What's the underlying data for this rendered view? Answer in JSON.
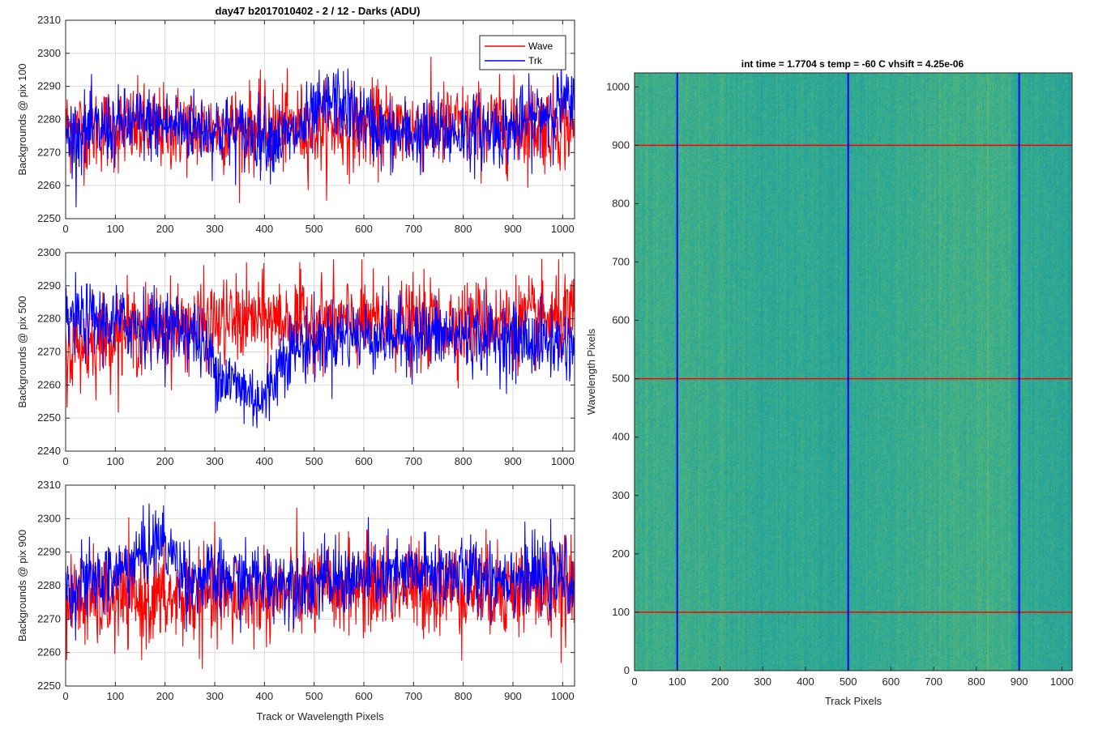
{
  "figure_title": "day47 b2017010402 - 2 / 12 - Darks (ADU)",
  "chart_data": [
    {
      "type": "line",
      "id": "left-top",
      "title": "day47 b2017010402 - 2 / 12 - Darks (ADU)",
      "ylabel": "Backgrounds @ pix 100",
      "xlabel": "",
      "xlim": [
        0,
        1024
      ],
      "ylim": [
        2250,
        2310
      ],
      "xticks": [
        0,
        100,
        200,
        300,
        400,
        500,
        600,
        700,
        800,
        900,
        1000
      ],
      "yticks": [
        2250,
        2260,
        2270,
        2280,
        2290,
        2300,
        2310
      ],
      "grid": true,
      "legend": "top-right",
      "series": [
        {
          "name": "Wave",
          "color": "#ff0000",
          "mean": 2277,
          "noise": 6.5,
          "anchors": [
            [
              0,
              2277
            ],
            [
              1024,
              2278
            ]
          ]
        },
        {
          "name": "Trk",
          "color": "#0000ff",
          "mean": 2276,
          "noise": 5.5,
          "anchors": [
            [
              0,
              2275
            ],
            [
              150,
              2279
            ],
            [
              300,
              2277
            ],
            [
              450,
              2274
            ],
            [
              540,
              2286
            ],
            [
              650,
              2275
            ],
            [
              900,
              2277
            ],
            [
              1000,
              2285
            ],
            [
              1024,
              2283
            ]
          ]
        }
      ]
    },
    {
      "type": "line",
      "id": "left-mid",
      "title": "",
      "ylabel": "Backgrounds @ pix 500",
      "xlabel": "",
      "xlim": [
        0,
        1024
      ],
      "ylim": [
        2240,
        2300
      ],
      "xticks": [
        0,
        100,
        200,
        300,
        400,
        500,
        600,
        700,
        800,
        900,
        1000
      ],
      "yticks": [
        2240,
        2250,
        2260,
        2270,
        2280,
        2290,
        2300
      ],
      "grid": true,
      "legend": "none",
      "series": [
        {
          "name": "Wave",
          "color": "#ff0000",
          "mean": 2277,
          "noise": 6.5,
          "anchors": [
            [
              0,
              2270
            ],
            [
              100,
              2276
            ],
            [
              400,
              2280
            ],
            [
              700,
              2278
            ],
            [
              1024,
              2280
            ]
          ]
        },
        {
          "name": "Trk",
          "color": "#0000ff",
          "mean": 2276,
          "noise": 5.5,
          "anchors": [
            [
              0,
              2280
            ],
            [
              250,
              2277
            ],
            [
              320,
              2262
            ],
            [
              400,
              2255
            ],
            [
              440,
              2270
            ],
            [
              550,
              2275
            ],
            [
              800,
              2275
            ],
            [
              1024,
              2272
            ]
          ]
        }
      ]
    },
    {
      "type": "line",
      "id": "left-bottom",
      "title": "",
      "ylabel": "Backgrounds @ pix 900",
      "xlabel": "Track or Wavelength Pixels",
      "xlim": [
        0,
        1024
      ],
      "ylim": [
        2250,
        2310
      ],
      "xticks": [
        0,
        100,
        200,
        300,
        400,
        500,
        600,
        700,
        800,
        900,
        1000
      ],
      "yticks": [
        2250,
        2260,
        2270,
        2280,
        2290,
        2300,
        2310
      ],
      "grid": true,
      "legend": "none",
      "series": [
        {
          "name": "Wave",
          "color": "#ff0000",
          "mean": 2278,
          "noise": 7,
          "anchors": [
            [
              0,
              2275
            ],
            [
              300,
              2276
            ],
            [
              600,
              2280
            ],
            [
              1024,
              2278
            ]
          ]
        },
        {
          "name": "Trk",
          "color": "#0000ff",
          "mean": 2281,
          "noise": 5.5,
          "anchors": [
            [
              0,
              2279
            ],
            [
              100,
              2283
            ],
            [
              190,
              2294
            ],
            [
              250,
              2282
            ],
            [
              500,
              2281
            ],
            [
              750,
              2284
            ],
            [
              1024,
              2282
            ]
          ]
        }
      ]
    },
    {
      "type": "heatmap",
      "id": "right-image",
      "title": "int time = 1.7704 s    temp = -60 C    vhsift = 4.25e-06",
      "xlabel": "Track Pixels",
      "ylabel": "Wavelength Pixels",
      "xlim": [
        0,
        1024
      ],
      "ylim": [
        0,
        1024
      ],
      "xticks": [
        0,
        100,
        200,
        300,
        400,
        500,
        600,
        700,
        800,
        900,
        1000
      ],
      "yticks": [
        0,
        100,
        200,
        300,
        400,
        500,
        600,
        700,
        800,
        900,
        1000
      ],
      "colormap": [
        "#208f9e",
        "#26a69a",
        "#54b67a",
        "#8ec356"
      ],
      "vertical_markers": {
        "color": "#0000ff",
        "x": [
          100,
          500,
          900
        ]
      },
      "horizontal_markers": {
        "color": "#ff0000",
        "y": [
          100,
          500,
          900
        ]
      }
    }
  ]
}
